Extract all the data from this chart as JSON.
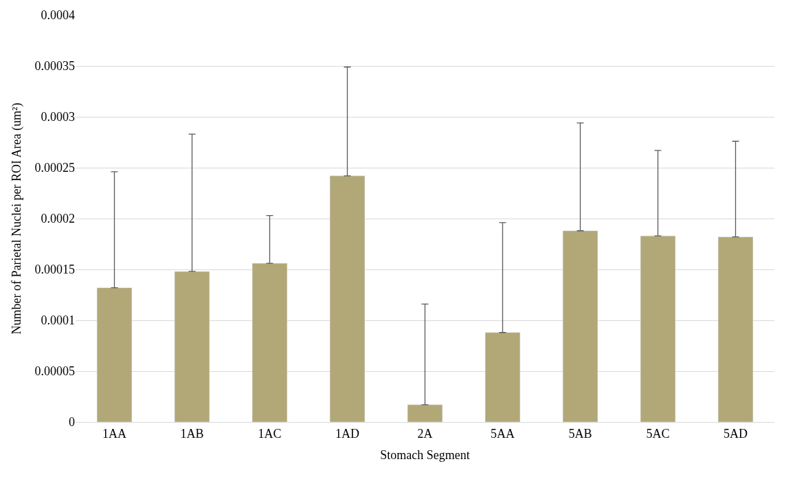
{
  "chart_data": {
    "type": "bar",
    "xlabel": "Stomach Segment",
    "ylabel": "Number of Parietal Nuclei per ROI Area (um²)",
    "categories": [
      "1AA",
      "1AB",
      "1AC",
      "1AD",
      "2A",
      "5AA",
      "5AB",
      "5AC",
      "5AD"
    ],
    "values": [
      0.000132,
      0.000148,
      0.000156,
      0.000242,
      1.7e-05,
      8.8e-05,
      0.000188,
      0.000183,
      0.000182
    ],
    "errors": [
      [
        0.000132,
        0.000246
      ],
      [
        0.000148,
        0.000283
      ],
      [
        0.000156,
        0.000203
      ],
      [
        0.000242,
        0.000349
      ],
      [
        1.7e-05,
        0.000116
      ],
      [
        8.8e-05,
        0.000196
      ],
      [
        0.000188,
        0.000294
      ],
      [
        0.000183,
        0.000267
      ],
      [
        0.000182,
        0.000276
      ]
    ],
    "color": "#b2a877",
    "ylim": [
      0,
      0.0004
    ],
    "yticks": [
      0,
      {
        "value": 5e-05,
        "label": "0.00005"
      },
      0.0001,
      0.00015,
      0.0002,
      0.00025,
      0.0003,
      0.00035,
      0.0004
    ],
    "grid": "y"
  }
}
